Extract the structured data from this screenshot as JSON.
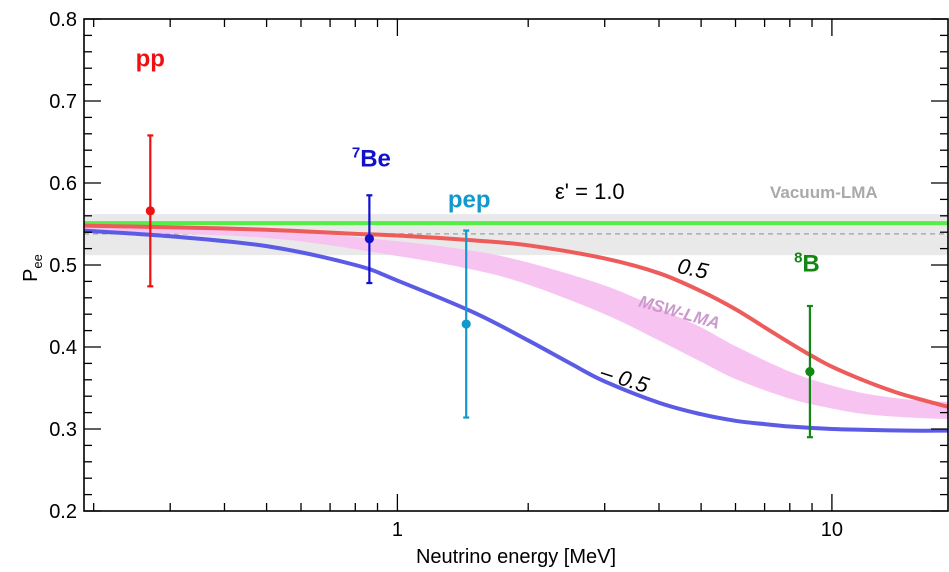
{
  "chart_data": {
    "type": "scatter",
    "xlabel": "Neutrino energy [MeV]",
    "ylabel": "P",
    "ylabel_sub": "ee",
    "xscale": "log",
    "xlim": [
      0.19,
      18.5
    ],
    "ylim": [
      0.2,
      0.8
    ],
    "x_ticks": [
      1,
      10
    ],
    "x_tick_labels": [
      "1",
      "10"
    ],
    "y_ticks": [
      0.2,
      0.3,
      0.4,
      0.5,
      0.6,
      0.7,
      0.8
    ],
    "y_tick_labels": [
      "0.2",
      "0.3",
      "0.4",
      "0.5",
      "0.6",
      "0.7",
      "0.8"
    ],
    "vacuum_band": {
      "label": "Vacuum-LMA",
      "y_low": 0.512,
      "y_high": 0.562,
      "y_central": 0.538,
      "color": "#e9e9e9"
    },
    "curves": [
      {
        "name": "1.0",
        "color": "#55ee44",
        "x": [
          0.19,
          1,
          5,
          18.5
        ],
        "y": [
          0.551,
          0.551,
          0.551,
          0.551
        ]
      },
      {
        "name": "0.5",
        "color": "#ee5b5b",
        "x": [
          0.19,
          0.3,
          0.5,
          0.8,
          1.0,
          1.5,
          2.0,
          3.0,
          4.0,
          5.0,
          6.0,
          7.0,
          8.0,
          9.0,
          10.0,
          12.0,
          14.0,
          16.0,
          18.5
        ],
        "y": [
          0.548,
          0.546,
          0.543,
          0.538,
          0.536,
          0.53,
          0.524,
          0.508,
          0.49,
          0.468,
          0.446,
          0.424,
          0.405,
          0.389,
          0.376,
          0.358,
          0.345,
          0.336,
          0.327
        ]
      },
      {
        "name": "-0.5",
        "color": "#5b5be6",
        "x": [
          0.19,
          0.3,
          0.5,
          0.8,
          1.0,
          1.5,
          2.0,
          2.5,
          3.0,
          4.0,
          5.0,
          6.0,
          7.0,
          8.0,
          10.0,
          12.0,
          15.0,
          18.5
        ],
        "y": [
          0.542,
          0.535,
          0.523,
          0.5,
          0.481,
          0.442,
          0.408,
          0.38,
          0.358,
          0.332,
          0.318,
          0.31,
          0.306,
          0.303,
          0.3,
          0.299,
          0.298,
          0.298
        ]
      }
    ],
    "msw_band": {
      "name": "MSW-LMA",
      "color": "#f7c4f2",
      "x": [
        0.19,
        0.5,
        1.0,
        1.5,
        2.0,
        3.0,
        4.0,
        5.0,
        6.0,
        8.0,
        10.0,
        12.0,
        15.0,
        18.5
      ],
      "y_low": [
        0.541,
        0.533,
        0.511,
        0.494,
        0.476,
        0.44,
        0.408,
        0.382,
        0.361,
        0.337,
        0.325,
        0.318,
        0.314,
        0.312
      ],
      "y_high": [
        0.546,
        0.542,
        0.529,
        0.517,
        0.503,
        0.475,
        0.447,
        0.424,
        0.401,
        0.37,
        0.353,
        0.343,
        0.336,
        0.333
      ]
    },
    "points": [
      {
        "label": "pp",
        "x": 0.27,
        "y": 0.566,
        "y_low": 0.474,
        "y_high": 0.658,
        "color": "#ee1111"
      },
      {
        "label": "7Be",
        "sup": "7",
        "base": "Be",
        "x": 0.862,
        "y": 0.532,
        "y_low": 0.478,
        "y_high": 0.585,
        "color": "#1111cc"
      },
      {
        "label": "pep",
        "x": 1.44,
        "y": 0.428,
        "y_low": 0.314,
        "y_high": 0.542,
        "color": "#1199cc"
      },
      {
        "label": "8B",
        "sup": "8",
        "base": "B",
        "x": 8.9,
        "y": 0.37,
        "y_low": 0.29,
        "y_high": 0.45,
        "color": "#118811"
      }
    ],
    "annotations": {
      "eps_label": "ε' = 1.0",
      "half_label": "0.5",
      "neg_half_label": "– 0.5",
      "vacuum_label": "Vacuum-LMA",
      "msw_label": "MSW-LMA"
    },
    "legend": "none",
    "grid": false
  }
}
